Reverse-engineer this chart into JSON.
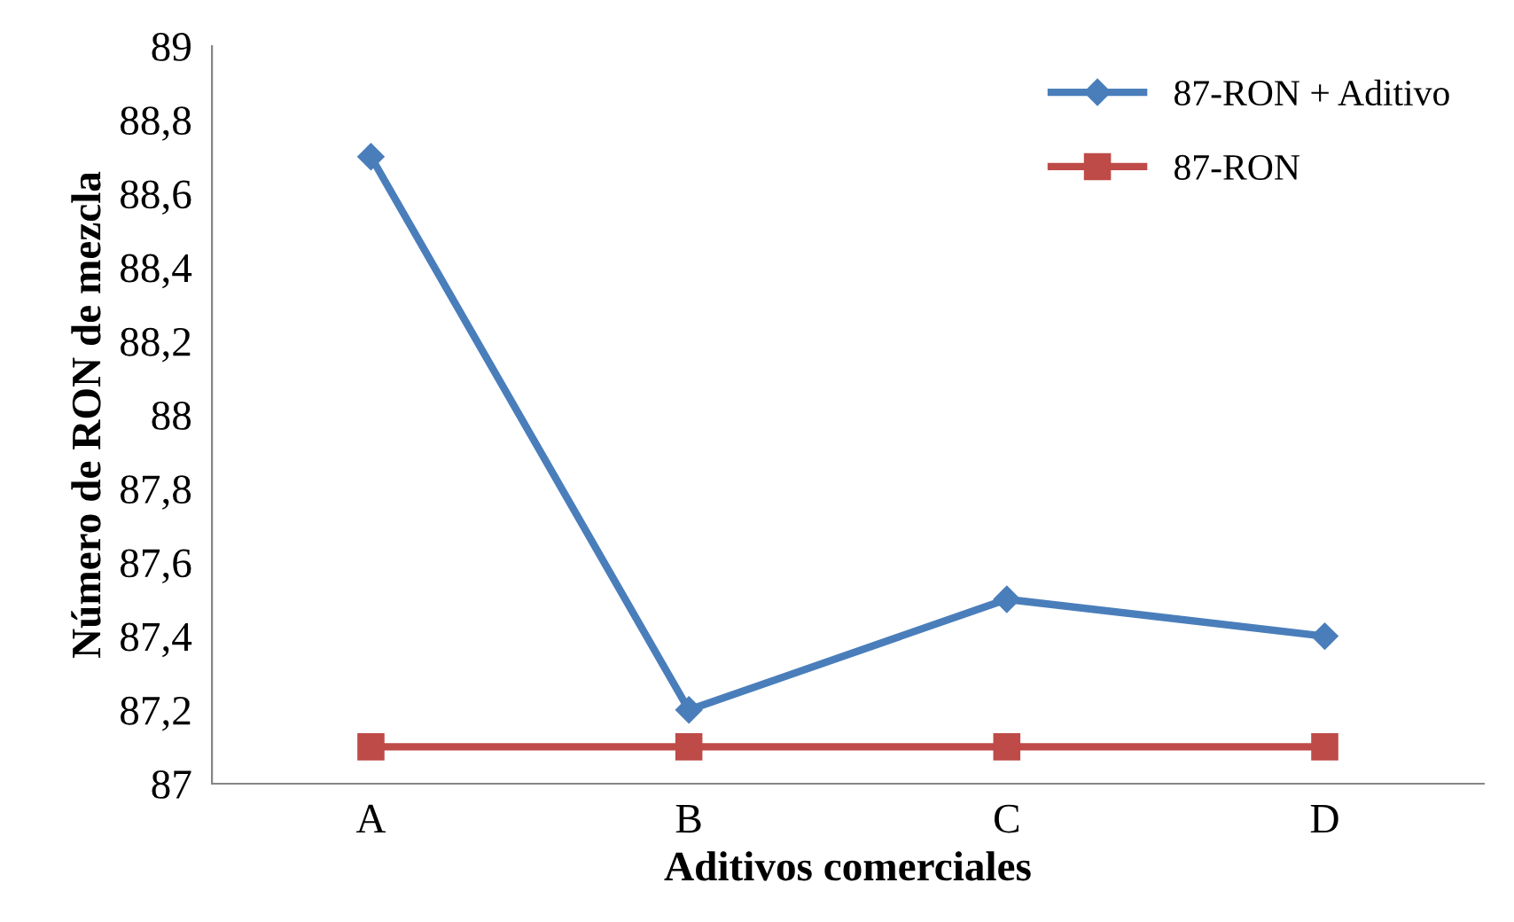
{
  "chart_data": {
    "type": "line",
    "xlabel": "Aditivos comerciales",
    "ylabel": "Número de RON de mezcla",
    "categories": [
      "A",
      "B",
      "C",
      "D"
    ],
    "series": [
      {
        "name": "87-RON + Aditivo",
        "color": "#4a7ebb",
        "values": [
          88.7,
          87.2,
          87.5,
          87.4
        ],
        "marker": "diamond"
      },
      {
        "name": "87-RON",
        "color": "#be4b48",
        "values": [
          87.1,
          87.1,
          87.1,
          87.1
        ],
        "marker": "square"
      }
    ],
    "ylim": [
      87,
      89
    ],
    "yticks": [
      87,
      {
        "value": 87.2,
        "label": "87,2"
      },
      {
        "value": 87.4,
        "label": "87,4"
      },
      {
        "value": 87.6,
        "label": "87,6"
      },
      {
        "value": 87.8,
        "label": "87,8"
      },
      88,
      {
        "value": 88.2,
        "label": "88,2"
      },
      {
        "value": 88.4,
        "label": "88,4"
      },
      {
        "value": 88.6,
        "label": "88,6"
      },
      {
        "value": 88.8,
        "label": "88,8"
      },
      89
    ],
    "grid": false,
    "legend": "top right",
    "line_style": "solid"
  }
}
